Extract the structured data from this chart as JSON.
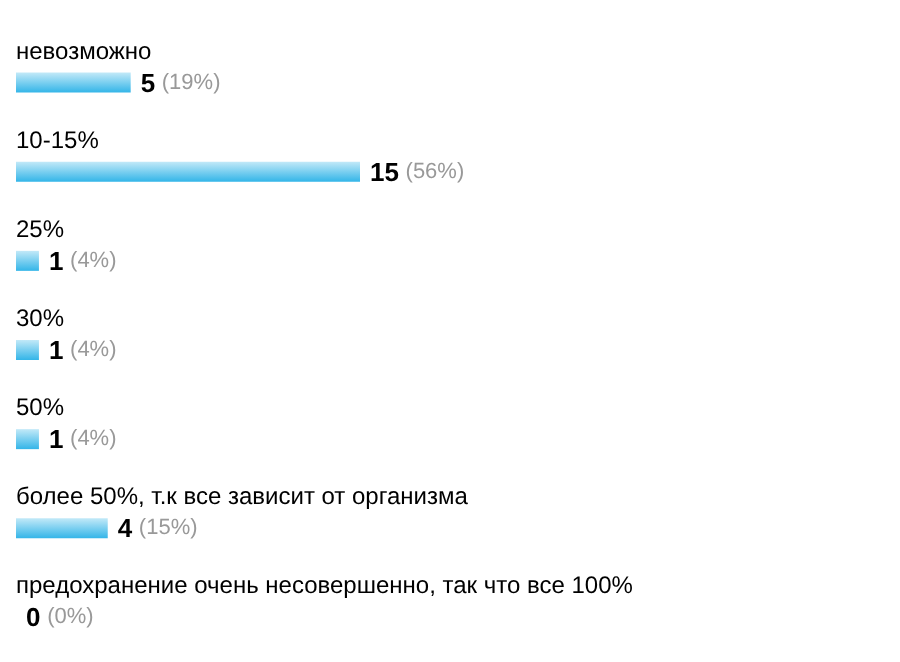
{
  "chart_data": {
    "type": "bar",
    "orientation": "horizontal",
    "categories": [
      "невозможно",
      "10-15%",
      "25%",
      "30%",
      "50%",
      "более 50%, т.к все зависит от организма",
      "предохранение очень несовершенно, так что все 100%"
    ],
    "values": [
      5,
      15,
      1,
      1,
      1,
      4,
      0
    ],
    "value_labels": [
      "5 (19%)",
      "15 (56%)",
      "1 (4%)",
      "1 (4%)",
      "1 (4%)",
      "4 (15%)",
      "0 (0%)"
    ],
    "color": "#33b5e8",
    "grid": false
  }
}
